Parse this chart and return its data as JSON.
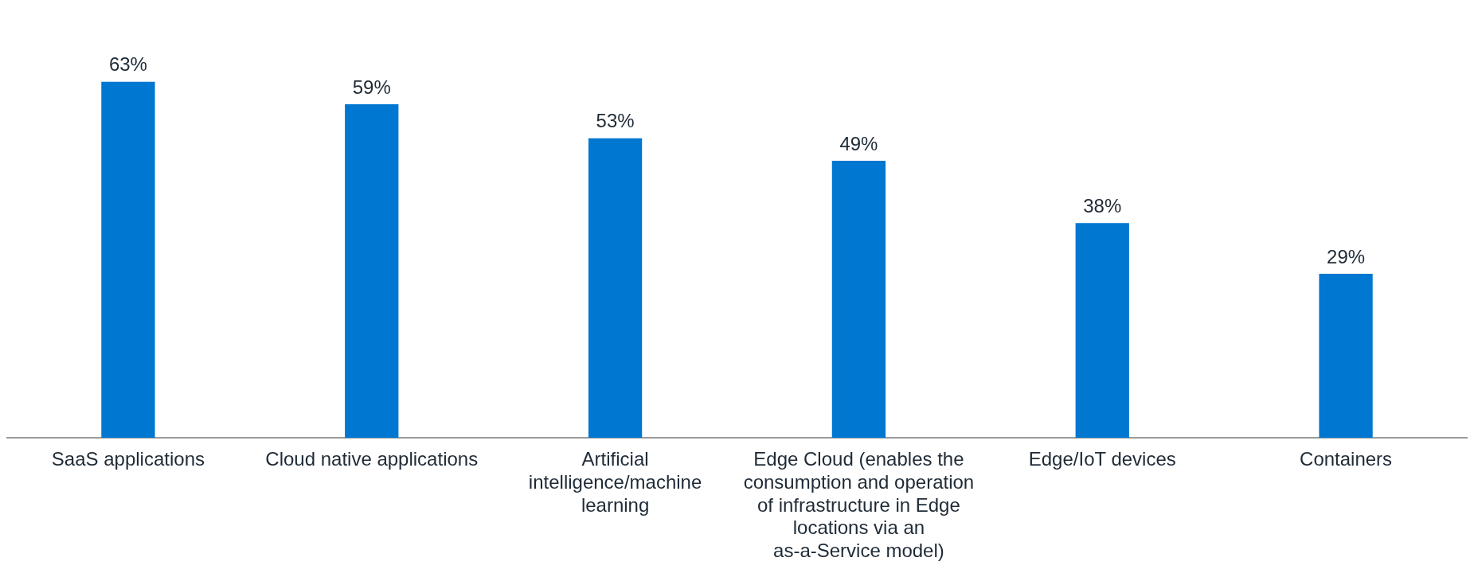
{
  "chart_data": {
    "type": "bar",
    "categories": [
      "SaaS applications",
      "Cloud native applications",
      "Artificial intelligence/machine learning",
      "Edge Cloud (enables the consumption and operation of infrastructure in Edge locations via an as-a-Service model)",
      "Edge/IoT devices",
      "Containers"
    ],
    "values": [
      63,
      59,
      53,
      49,
      38,
      29
    ],
    "value_labels": [
      "63%",
      "59%",
      "53%",
      "49%",
      "38%",
      "29%"
    ],
    "color": "#0077d0",
    "grid": false,
    "legend": false
  }
}
